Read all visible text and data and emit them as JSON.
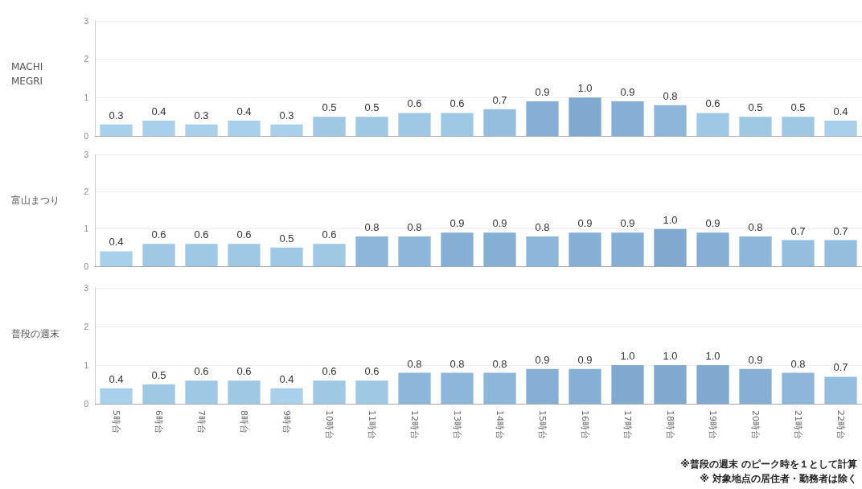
{
  "chart_data": [
    {
      "type": "bar",
      "ylabel": "MACHI MEGRI",
      "categories": [
        null,
        null,
        null,
        null,
        null,
        null,
        null,
        null,
        null,
        null,
        null,
        null,
        null,
        null,
        null,
        null,
        null,
        null
      ],
      "values": [
        0.3,
        0.4,
        0.3,
        0.4,
        0.3,
        0.5,
        0.5,
        0.6,
        0.6,
        0.7,
        0.9,
        1.0,
        0.9,
        0.8,
        0.6,
        0.5,
        0.5,
        0.4
      ],
      "value_labels": [
        "0.3",
        "0.4",
        "0.3",
        "0.4",
        "0.3",
        "0.5",
        "0.5",
        "0.6",
        "0.6",
        "0.7",
        "0.9",
        "1.0",
        "0.9",
        "0.8",
        "0.6",
        "0.5",
        "0.5",
        "0.4"
      ],
      "colors": [
        "#a9d0ea",
        "#a9d0ea",
        "#a9d0ea",
        "#a9d0ea",
        "#a9d0ea",
        "#9fc8e5",
        "#9fc8e5",
        "#9fc8e5",
        "#9fc8e5",
        "#94bedf",
        "#86afd5",
        "#7fa9cf",
        "#86afd5",
        "#8cb6da",
        "#9fc8e5",
        "#9fc8e5",
        "#9fc8e5",
        "#a9d0ea"
      ],
      "ylim": [
        0,
        3
      ],
      "yticks": [
        0,
        1,
        2,
        3
      ],
      "grid": "y",
      "tick_labels": "y"
    },
    {
      "type": "bar",
      "ylabel": "富山まつり",
      "categories": [
        null,
        null,
        null,
        null,
        null,
        null,
        null,
        null,
        null,
        null,
        null,
        null,
        null,
        null,
        null,
        null,
        null,
        null
      ],
      "values": [
        0.4,
        0.6,
        0.6,
        0.6,
        0.5,
        0.6,
        0.8,
        0.8,
        0.9,
        0.9,
        0.8,
        0.9,
        0.9,
        1.0,
        0.9,
        0.8,
        0.7,
        0.7
      ],
      "value_labels": [
        "0.4",
        "0.6",
        "0.6",
        "0.6",
        "0.5",
        "0.6",
        "0.8",
        "0.8",
        "0.9",
        "0.9",
        "0.8",
        "0.9",
        "0.9",
        "1.0",
        "0.9",
        "0.8",
        "0.7",
        "0.7"
      ],
      "colors": [
        "#a9d0ea",
        "#9fc8e5",
        "#9fc8e5",
        "#9fc8e5",
        "#9fc8e5",
        "#9fc8e5",
        "#8cb6da",
        "#8cb6da",
        "#86afd5",
        "#86afd5",
        "#8cb6da",
        "#86afd5",
        "#86afd5",
        "#7fa9cf",
        "#86afd5",
        "#8cb6da",
        "#94bedf",
        "#94bedf"
      ],
      "ylim": [
        0,
        3
      ],
      "yticks": [
        0,
        1,
        2,
        3
      ],
      "grid": "y",
      "tick_labels": "y"
    },
    {
      "type": "bar",
      "ylabel": "普段の週末",
      "categories": [
        "5時台",
        "6時台",
        "7時台",
        "8時台",
        "9時台",
        "10時台",
        "11時台",
        "12時台",
        "13時台",
        "14時台",
        "15時台",
        "16時台",
        "17時台",
        "18時台",
        "19時台",
        "20時台",
        "21時台",
        "22時台"
      ],
      "values": [
        0.4,
        0.5,
        0.6,
        0.6,
        0.4,
        0.6,
        0.6,
        0.8,
        0.8,
        0.8,
        0.9,
        0.9,
        1.0,
        1.0,
        1.0,
        0.9,
        0.8,
        0.7
      ],
      "value_labels": [
        "0.4",
        "0.5",
        "0.6",
        "0.6",
        "0.4",
        "0.6",
        "0.6",
        "0.8",
        "0.8",
        "0.8",
        "0.9",
        "0.9",
        "1.0",
        "1.0",
        "1.0",
        "0.9",
        "0.8",
        "0.7"
      ],
      "colors": [
        "#a9d0ea",
        "#9fc8e5",
        "#9fc8e5",
        "#9fc8e5",
        "#a9d0ea",
        "#9fc8e5",
        "#9fc8e5",
        "#8cb6da",
        "#8cb6da",
        "#8cb6da",
        "#86afd5",
        "#86afd5",
        "#7fa9cf",
        "#7fa9cf",
        "#7fa9cf",
        "#86afd5",
        "#8cb6da",
        "#94bedf"
      ],
      "ylim": [
        0,
        3
      ],
      "yticks": [
        0,
        1,
        2,
        3
      ],
      "grid": "y",
      "annotations": [
        "※普段の週末 のピーク時を１として計算",
        "※ 対象地点の居住者・勤務者は除く"
      ]
    }
  ]
}
